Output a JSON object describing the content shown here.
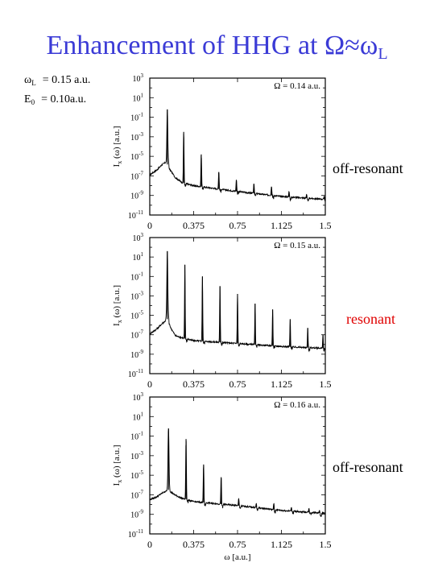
{
  "slide": {
    "title_main": "Enhancement of HHG at Ω≈ω",
    "title_sub": "L"
  },
  "params": [
    {
      "symbol": "ω",
      "sub": "L",
      "value": "= 0.15 a.u."
    },
    {
      "symbol": "E",
      "sub": "0",
      "value": "= 0.10a.u."
    }
  ],
  "labels": [
    {
      "text": "off-resonant",
      "color": "#000000"
    },
    {
      "text": "resonant",
      "color": "#e00000"
    },
    {
      "text": "off-resonant",
      "color": "#000000"
    }
  ],
  "chart_data": [
    {
      "type": "line",
      "scale_y": "log",
      "xlim": [
        0,
        1.5
      ],
      "ylim_exp": [
        -11,
        3
      ],
      "xticks": [
        "0",
        "0.375",
        "0.75",
        "1.125",
        "1.5"
      ],
      "yticks_exp": [
        -11,
        -9,
        -7,
        -5,
        -3,
        -1,
        1,
        3
      ],
      "ylabel": "I_x (ω) [a.u.]",
      "xlabel": "",
      "annotation": "Ω = 0.14 a.u.",
      "omega": 0.14,
      "baseline_log": [
        [
          0,
          -6.9
        ],
        [
          0.06,
          -6.4
        ],
        [
          0.11,
          -5.8
        ],
        [
          0.14,
          -5.6
        ],
        [
          0.17,
          -6.3
        ],
        [
          0.22,
          -7.2
        ],
        [
          0.28,
          -7.7
        ],
        [
          0.375,
          -8.0
        ],
        [
          0.75,
          -8.6
        ],
        [
          1.125,
          -9.1
        ],
        [
          1.5,
          -9.4
        ]
      ],
      "peaks": [
        {
          "x": 0.15,
          "y_exp": -0.2
        },
        {
          "x": 0.29,
          "y_exp": -2.5
        },
        {
          "x": 0.44,
          "y_exp": -4.8
        },
        {
          "x": 0.59,
          "y_exp": -6.6
        },
        {
          "x": 0.74,
          "y_exp": -7.4
        },
        {
          "x": 0.89,
          "y_exp": -7.8
        },
        {
          "x": 1.04,
          "y_exp": -8.1
        },
        {
          "x": 1.19,
          "y_exp": -8.6
        },
        {
          "x": 1.34,
          "y_exp": -8.9
        },
        {
          "x": 1.49,
          "y_exp": -9.1
        }
      ]
    },
    {
      "type": "line",
      "scale_y": "log",
      "xlim": [
        0,
        1.5
      ],
      "ylim_exp": [
        -11,
        3
      ],
      "xticks": [
        "0",
        "0.375",
        "0.75",
        "1.125",
        "1.5"
      ],
      "yticks_exp": [
        -11,
        -9,
        -7,
        -5,
        -3,
        -1,
        1,
        3
      ],
      "ylabel": "I_x (ω) [a.u.]",
      "xlabel": "",
      "annotation": "Ω = 0.15 a.u.",
      "omega": 0.15,
      "baseline_log": [
        [
          0,
          -6.9
        ],
        [
          0.06,
          -6.4
        ],
        [
          0.11,
          -5.8
        ],
        [
          0.15,
          -5.4
        ],
        [
          0.18,
          -6.3
        ],
        [
          0.22,
          -7.1
        ],
        [
          0.3,
          -7.4
        ],
        [
          0.375,
          -7.6
        ],
        [
          0.75,
          -7.9
        ],
        [
          1.125,
          -8.2
        ],
        [
          1.5,
          -8.4
        ]
      ],
      "peaks": [
        {
          "x": 0.15,
          "y_exp": 1.6
        },
        {
          "x": 0.3,
          "y_exp": 0.2
        },
        {
          "x": 0.45,
          "y_exp": -1.0
        },
        {
          "x": 0.6,
          "y_exp": -2.0
        },
        {
          "x": 0.75,
          "y_exp": -2.8
        },
        {
          "x": 0.9,
          "y_exp": -3.8
        },
        {
          "x": 1.05,
          "y_exp": -4.4
        },
        {
          "x": 1.2,
          "y_exp": -5.4
        },
        {
          "x": 1.35,
          "y_exp": -6.3
        },
        {
          "x": 1.48,
          "y_exp": -7.0
        }
      ]
    },
    {
      "type": "line",
      "scale_y": "log",
      "xlim": [
        0,
        1.5
      ],
      "ylim_exp": [
        -11,
        3
      ],
      "xticks": [
        "0",
        "0.375",
        "0.75",
        "1.125",
        "1.5"
      ],
      "yticks_exp": [
        -11,
        -9,
        -7,
        -5,
        -3,
        -1,
        1,
        3
      ],
      "ylabel": "I_x (ω) [a.u.]",
      "xlabel": "ω [a.u.]",
      "annotation": "Ω = 0.16 a.u.",
      "omega": 0.16,
      "baseline_log": [
        [
          0,
          -7.5
        ],
        [
          0.06,
          -7.2
        ],
        [
          0.11,
          -6.8
        ],
        [
          0.16,
          -6.5
        ],
        [
          0.2,
          -6.9
        ],
        [
          0.26,
          -7.3
        ],
        [
          0.375,
          -7.7
        ],
        [
          0.75,
          -8.1
        ],
        [
          1.125,
          -8.6
        ],
        [
          1.5,
          -8.9
        ]
      ],
      "peaks": [
        {
          "x": 0.16,
          "y_exp": -0.2
        },
        {
          "x": 0.31,
          "y_exp": -1.3
        },
        {
          "x": 0.46,
          "y_exp": -3.9
        },
        {
          "x": 0.61,
          "y_exp": -5.2
        },
        {
          "x": 0.76,
          "y_exp": -7.4
        },
        {
          "x": 0.91,
          "y_exp": -7.9
        },
        {
          "x": 1.06,
          "y_exp": -7.9
        },
        {
          "x": 1.21,
          "y_exp": -8.3
        },
        {
          "x": 1.36,
          "y_exp": -8.4
        },
        {
          "x": 1.45,
          "y_exp": -8.6
        }
      ]
    }
  ]
}
